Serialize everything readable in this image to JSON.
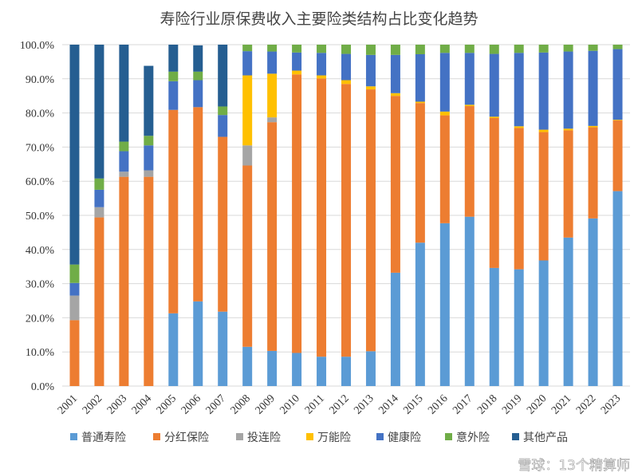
{
  "chart_data": {
    "type": "bar",
    "stacked": true,
    "title": "寿险行业原保费收入主要险类结构占比变化趋势",
    "xlabel": "",
    "ylabel": "",
    "ylim": [
      0,
      100
    ],
    "yticks": [
      "0.0%",
      "10.0%",
      "20.0%",
      "30.0%",
      "40.0%",
      "50.0%",
      "60.0%",
      "70.0%",
      "80.0%",
      "90.0%",
      "100.0%"
    ],
    "grid": true,
    "legend_position": "bottom",
    "categories": [
      "2001",
      "2002",
      "2003",
      "2004",
      "2005",
      "2006",
      "2007",
      "2008",
      "2009",
      "2010",
      "2011",
      "2012",
      "2013",
      "2014",
      "2015",
      "2016",
      "2017",
      "2018",
      "2019",
      "2020",
      "2021",
      "2022",
      "2023"
    ],
    "series": [
      {
        "name": "普通寿险",
        "color": "#5B9BD5",
        "values": [
          0,
          0,
          0,
          0,
          21.3,
          24.8,
          21.8,
          11.5,
          10.3,
          9.7,
          8.6,
          8.6,
          10.2,
          33.2,
          42.0,
          47.7,
          49.6,
          34.6,
          34.2,
          36.8,
          43.5,
          49.1,
          57.1
        ]
      },
      {
        "name": "分红保险",
        "color": "#ED7D31",
        "values": [
          19.3,
          49.4,
          61.3,
          61.3,
          59.6,
          56.9,
          51.2,
          53.1,
          67.0,
          81.6,
          81.5,
          79.9,
          76.7,
          51.8,
          40.9,
          31.6,
          32.4,
          43.9,
          41.4,
          37.6,
          31.4,
          26.7,
          20.7
        ]
      },
      {
        "name": "投连险",
        "color": "#A5A5A5",
        "values": [
          7.2,
          3.0,
          1.5,
          1.9,
          0,
          0,
          0,
          5.9,
          1.4,
          0,
          0,
          0,
          0,
          0,
          0,
          0,
          0,
          0,
          0,
          0,
          0,
          0,
          0
        ]
      },
      {
        "name": "万能险",
        "color": "#FFC000",
        "values": [
          0,
          0,
          0,
          0,
          0,
          0,
          0,
          20.5,
          12.8,
          1.1,
          0.9,
          1.1,
          0.9,
          0.8,
          0.4,
          1.1,
          0.4,
          0.4,
          0.5,
          0.7,
          0.5,
          0.4,
          0.2
        ]
      },
      {
        "name": "健康险",
        "color": "#4472C4",
        "values": [
          3.7,
          5.1,
          6.0,
          7.3,
          8.4,
          7.9,
          6.4,
          7.1,
          6.5,
          5.3,
          6.6,
          7.7,
          9.2,
          11.2,
          13.9,
          17.2,
          15.2,
          18.4,
          21.5,
          22.6,
          22.6,
          22.0,
          20.7
        ]
      },
      {
        "name": "意外险",
        "color": "#70AD47",
        "values": [
          5.4,
          3.3,
          2.8,
          2.8,
          2.8,
          2.5,
          2.5,
          1.9,
          2.0,
          2.3,
          2.4,
          2.7,
          3.0,
          3.0,
          2.8,
          2.4,
          2.4,
          2.7,
          2.4,
          2.3,
          2.0,
          1.8,
          1.3
        ]
      },
      {
        "name": "其他产品",
        "color": "#255E91",
        "values": [
          64.4,
          39.2,
          28.4,
          20.5,
          7.9,
          7.7,
          18.1,
          0,
          0,
          0,
          0,
          0,
          0,
          0,
          0,
          0,
          0,
          0,
          0,
          0,
          0,
          0,
          0
        ]
      }
    ]
  },
  "watermark": "雪球：13个精算师"
}
